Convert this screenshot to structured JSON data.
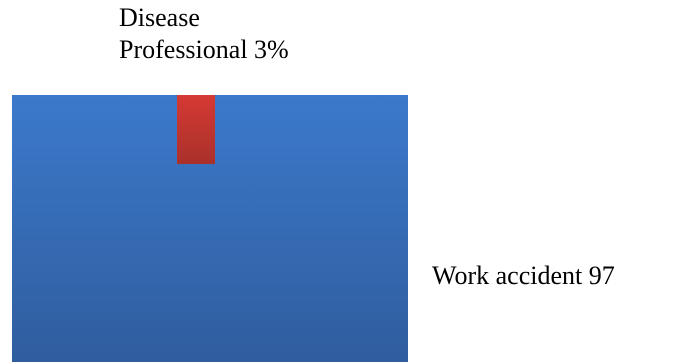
{
  "chart_data": {
    "type": "bar",
    "categories": [
      "Work accident",
      "Professional Disease"
    ],
    "values": [
      97,
      3
    ],
    "unit": "%",
    "labels": [
      {
        "line1": "Work accident 97"
      },
      {
        "line1": "Disease",
        "line2": "Professional 3%"
      }
    ],
    "colors": {
      "Work accident": "#3a74c2",
      "Professional Disease": "#c4342f"
    }
  }
}
